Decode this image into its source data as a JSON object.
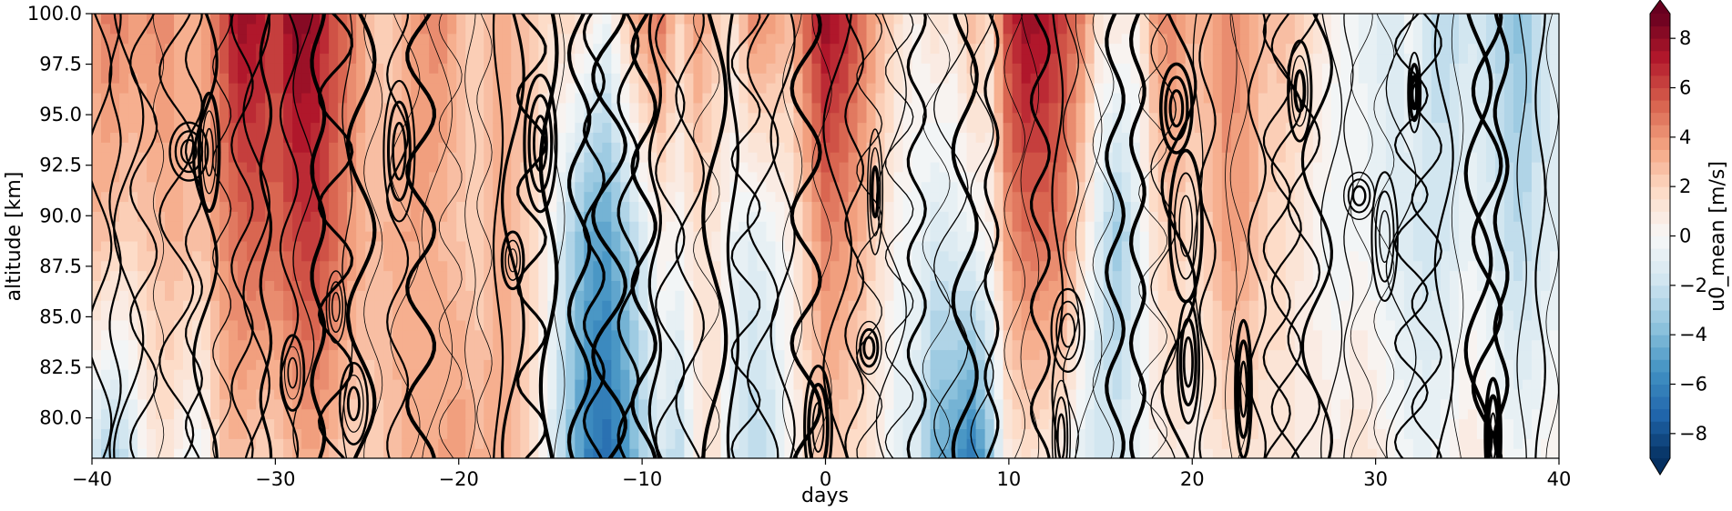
{
  "chart_data": {
    "type": "heatmap",
    "xlabel": "days",
    "ylabel": "altitude [km]",
    "xlim": [
      -40,
      40
    ],
    "ylim": [
      78,
      100
    ],
    "x_ticks": [
      "−40",
      "−30",
      "−20",
      "−10",
      "0",
      "10",
      "20",
      "30",
      "40"
    ],
    "y_ticks": [
      "80.0",
      "82.5",
      "85.0",
      "87.5",
      "90.0",
      "92.5",
      "95.0",
      "97.5",
      "100.0"
    ],
    "colorbar": {
      "label": "u0_mean [m/s]",
      "range": [
        -9,
        9
      ],
      "extend": "both",
      "colormap": "RdBu_r",
      "ticks": [
        "−8",
        "−6",
        "−4",
        "−2",
        "0",
        "2",
        "4",
        "6",
        "8"
      ]
    },
    "columns": [
      {
        "day": -40,
        "top": 3.5,
        "mid": 3.0,
        "bot": -1.5
      },
      {
        "day": -39,
        "top": 5.0,
        "mid": 2.5,
        "bot": -3.0
      },
      {
        "day": -38,
        "top": 4.0,
        "mid": 2.0,
        "bot": -2.0
      },
      {
        "day": -37,
        "top": 4.0,
        "mid": 2.5,
        "bot": 0.5
      },
      {
        "day": -36,
        "top": 4.5,
        "mid": 3.0,
        "bot": 1.5
      },
      {
        "day": -35,
        "top": 3.0,
        "mid": 3.0,
        "bot": 0.0
      },
      {
        "day": -34,
        "top": 3.5,
        "mid": 2.5,
        "bot": -0.5
      },
      {
        "day": -33,
        "top": 5.5,
        "mid": 4.0,
        "bot": 2.5
      },
      {
        "day": -32,
        "top": 8.0,
        "mid": 5.0,
        "bot": 3.0
      },
      {
        "day": -31,
        "top": 7.5,
        "mid": 5.5,
        "bot": 2.0
      },
      {
        "day": -30,
        "top": 6.0,
        "mid": 5.0,
        "bot": 2.0
      },
      {
        "day": -29,
        "top": 8.5,
        "mid": 6.0,
        "bot": 3.0
      },
      {
        "day": -28,
        "top": 8.0,
        "mid": 6.5,
        "bot": 3.5
      },
      {
        "day": -27,
        "top": 6.0,
        "mid": 5.5,
        "bot": 3.0
      },
      {
        "day": -26,
        "top": 5.0,
        "mid": 4.0,
        "bot": 2.0
      },
      {
        "day": -25,
        "top": 3.0,
        "mid": 3.0,
        "bot": 2.0
      },
      {
        "day": -24,
        "top": 2.0,
        "mid": 3.0,
        "bot": 2.5
      },
      {
        "day": -23,
        "top": 3.0,
        "mid": 3.5,
        "bot": 3.0
      },
      {
        "day": -22,
        "top": 4.0,
        "mid": 3.5,
        "bot": 3.0
      },
      {
        "day": -21,
        "top": 4.5,
        "mid": 3.0,
        "bot": 3.5
      },
      {
        "day": -20,
        "top": 3.0,
        "mid": 2.5,
        "bot": 4.0
      },
      {
        "day": -19,
        "top": 2.0,
        "mid": 2.0,
        "bot": 3.0
      },
      {
        "day": -18,
        "top": 3.5,
        "mid": 3.0,
        "bot": 3.5
      },
      {
        "day": -17,
        "top": 3.0,
        "mid": 3.0,
        "bot": 3.0
      },
      {
        "day": -16,
        "top": 2.5,
        "mid": 2.0,
        "bot": 1.5
      },
      {
        "day": -15,
        "top": 1.5,
        "mid": 0.0,
        "bot": -1.0
      },
      {
        "day": -14,
        "top": 2.0,
        "mid": -2.5,
        "bot": -3.5
      },
      {
        "day": -13,
        "top": 1.0,
        "mid": -4.5,
        "bot": -6.0
      },
      {
        "day": -12,
        "top": -0.5,
        "mid": -5.0,
        "bot": -7.0
      },
      {
        "day": -11,
        "top": 2.0,
        "mid": -3.5,
        "bot": -5.5
      },
      {
        "day": -10,
        "top": 4.0,
        "mid": -1.5,
        "bot": -3.0
      },
      {
        "day": -9,
        "top": 5.0,
        "mid": 0.5,
        "bot": -1.5
      },
      {
        "day": -8,
        "top": 2.0,
        "mid": 0.0,
        "bot": -2.5
      },
      {
        "day": -7,
        "top": 4.0,
        "mid": 1.5,
        "bot": 0.5
      },
      {
        "day": -6,
        "top": 2.5,
        "mid": 1.0,
        "bot": 1.5
      },
      {
        "day": -5,
        "top": 1.5,
        "mid": -0.5,
        "bot": -1.5
      },
      {
        "day": -4,
        "top": 4.5,
        "mid": -1.0,
        "bot": -2.5
      },
      {
        "day": -3,
        "top": 4.0,
        "mid": -0.5,
        "bot": -2.0
      },
      {
        "day": -2,
        "top": 3.0,
        "mid": 0.5,
        "bot": 0.0
      },
      {
        "day": -1,
        "top": 5.5,
        "mid": 2.5,
        "bot": 1.5
      },
      {
        "day": 0,
        "top": 8.0,
        "mid": 4.5,
        "bot": 2.5
      },
      {
        "day": 1,
        "top": 7.0,
        "mid": 4.0,
        "bot": 2.0
      },
      {
        "day": 2,
        "top": 5.0,
        "mid": 3.0,
        "bot": 1.5
      },
      {
        "day": 3,
        "top": 3.0,
        "mid": 1.5,
        "bot": 0.5
      },
      {
        "day": 4,
        "top": 1.5,
        "mid": 0.0,
        "bot": -1.0
      },
      {
        "day": 5,
        "top": 0.5,
        "mid": -0.5,
        "bot": -1.5
      },
      {
        "day": 6,
        "top": 1.5,
        "mid": -1.5,
        "bot": -4.5
      },
      {
        "day": 7,
        "top": 1.0,
        "mid": -1.0,
        "bot": -5.0
      },
      {
        "day": 8,
        "top": 3.0,
        "mid": -0.5,
        "bot": -6.5
      },
      {
        "day": 9,
        "top": 1.5,
        "mid": 0.5,
        "bot": -3.5
      },
      {
        "day": 10,
        "top": 6.5,
        "mid": 4.0,
        "bot": 1.0
      },
      {
        "day": 11,
        "top": 8.0,
        "mid": 5.0,
        "bot": 1.5
      },
      {
        "day": 12,
        "top": 7.5,
        "mid": 5.0,
        "bot": 1.0
      },
      {
        "day": 13,
        "top": 6.0,
        "mid": 4.5,
        "bot": 0.5
      },
      {
        "day": 14,
        "top": 4.5,
        "mid": 1.5,
        "bot": -1.0
      },
      {
        "day": 15,
        "top": 1.0,
        "mid": -1.5,
        "bot": -2.0
      },
      {
        "day": 16,
        "top": 1.0,
        "mid": -3.5,
        "bot": -1.5
      },
      {
        "day": 17,
        "top": 0.5,
        "mid": -1.0,
        "bot": -0.5
      },
      {
        "day": 18,
        "top": 4.0,
        "mid": 1.5,
        "bot": 0.5
      },
      {
        "day": 19,
        "top": 4.5,
        "mid": 2.5,
        "bot": 1.0
      },
      {
        "day": 20,
        "top": 3.0,
        "mid": 1.5,
        "bot": 0.5
      },
      {
        "day": 21,
        "top": 3.5,
        "mid": 2.5,
        "bot": 1.0
      },
      {
        "day": 22,
        "top": 4.5,
        "mid": 4.0,
        "bot": 1.5
      },
      {
        "day": 23,
        "top": 3.5,
        "mid": 3.5,
        "bot": 1.5
      },
      {
        "day": 24,
        "top": 2.5,
        "mid": 2.0,
        "bot": 1.0
      },
      {
        "day": 25,
        "top": 3.0,
        "mid": 1.5,
        "bot": 1.5
      },
      {
        "day": 26,
        "top": 2.0,
        "mid": 1.0,
        "bot": 0.5
      },
      {
        "day": 27,
        "top": 1.0,
        "mid": 0.0,
        "bot": 1.0
      },
      {
        "day": 28,
        "top": 0.0,
        "mid": -0.5,
        "bot": 0.5
      },
      {
        "day": 29,
        "top": -0.5,
        "mid": 0.0,
        "bot": 1.5
      },
      {
        "day": 30,
        "top": -1.0,
        "mid": -0.5,
        "bot": 1.0
      },
      {
        "day": 31,
        "top": -1.5,
        "mid": -1.0,
        "bot": 0.0
      },
      {
        "day": 32,
        "top": 0.0,
        "mid": -1.5,
        "bot": -0.5
      },
      {
        "day": 33,
        "top": -2.0,
        "mid": -2.0,
        "bot": -0.5
      },
      {
        "day": 34,
        "top": -2.5,
        "mid": -1.5,
        "bot": 0.0
      },
      {
        "day": 35,
        "top": -1.5,
        "mid": -0.5,
        "bot": 1.0
      },
      {
        "day": 36,
        "top": -2.0,
        "mid": -1.0,
        "bot": 0.5
      },
      {
        "day": 37,
        "top": -3.0,
        "mid": -2.0,
        "bot": 0.0
      },
      {
        "day": 38,
        "top": -4.0,
        "mid": -2.5,
        "bot": -0.5
      },
      {
        "day": 39,
        "top": -2.0,
        "mid": -1.5,
        "bot": 0.0
      },
      {
        "day": 40,
        "top": -1.0,
        "mid": -1.0,
        "bot": 0.5
      }
    ],
    "overlay_contours": "black line contours (thickness varies with level)"
  }
}
